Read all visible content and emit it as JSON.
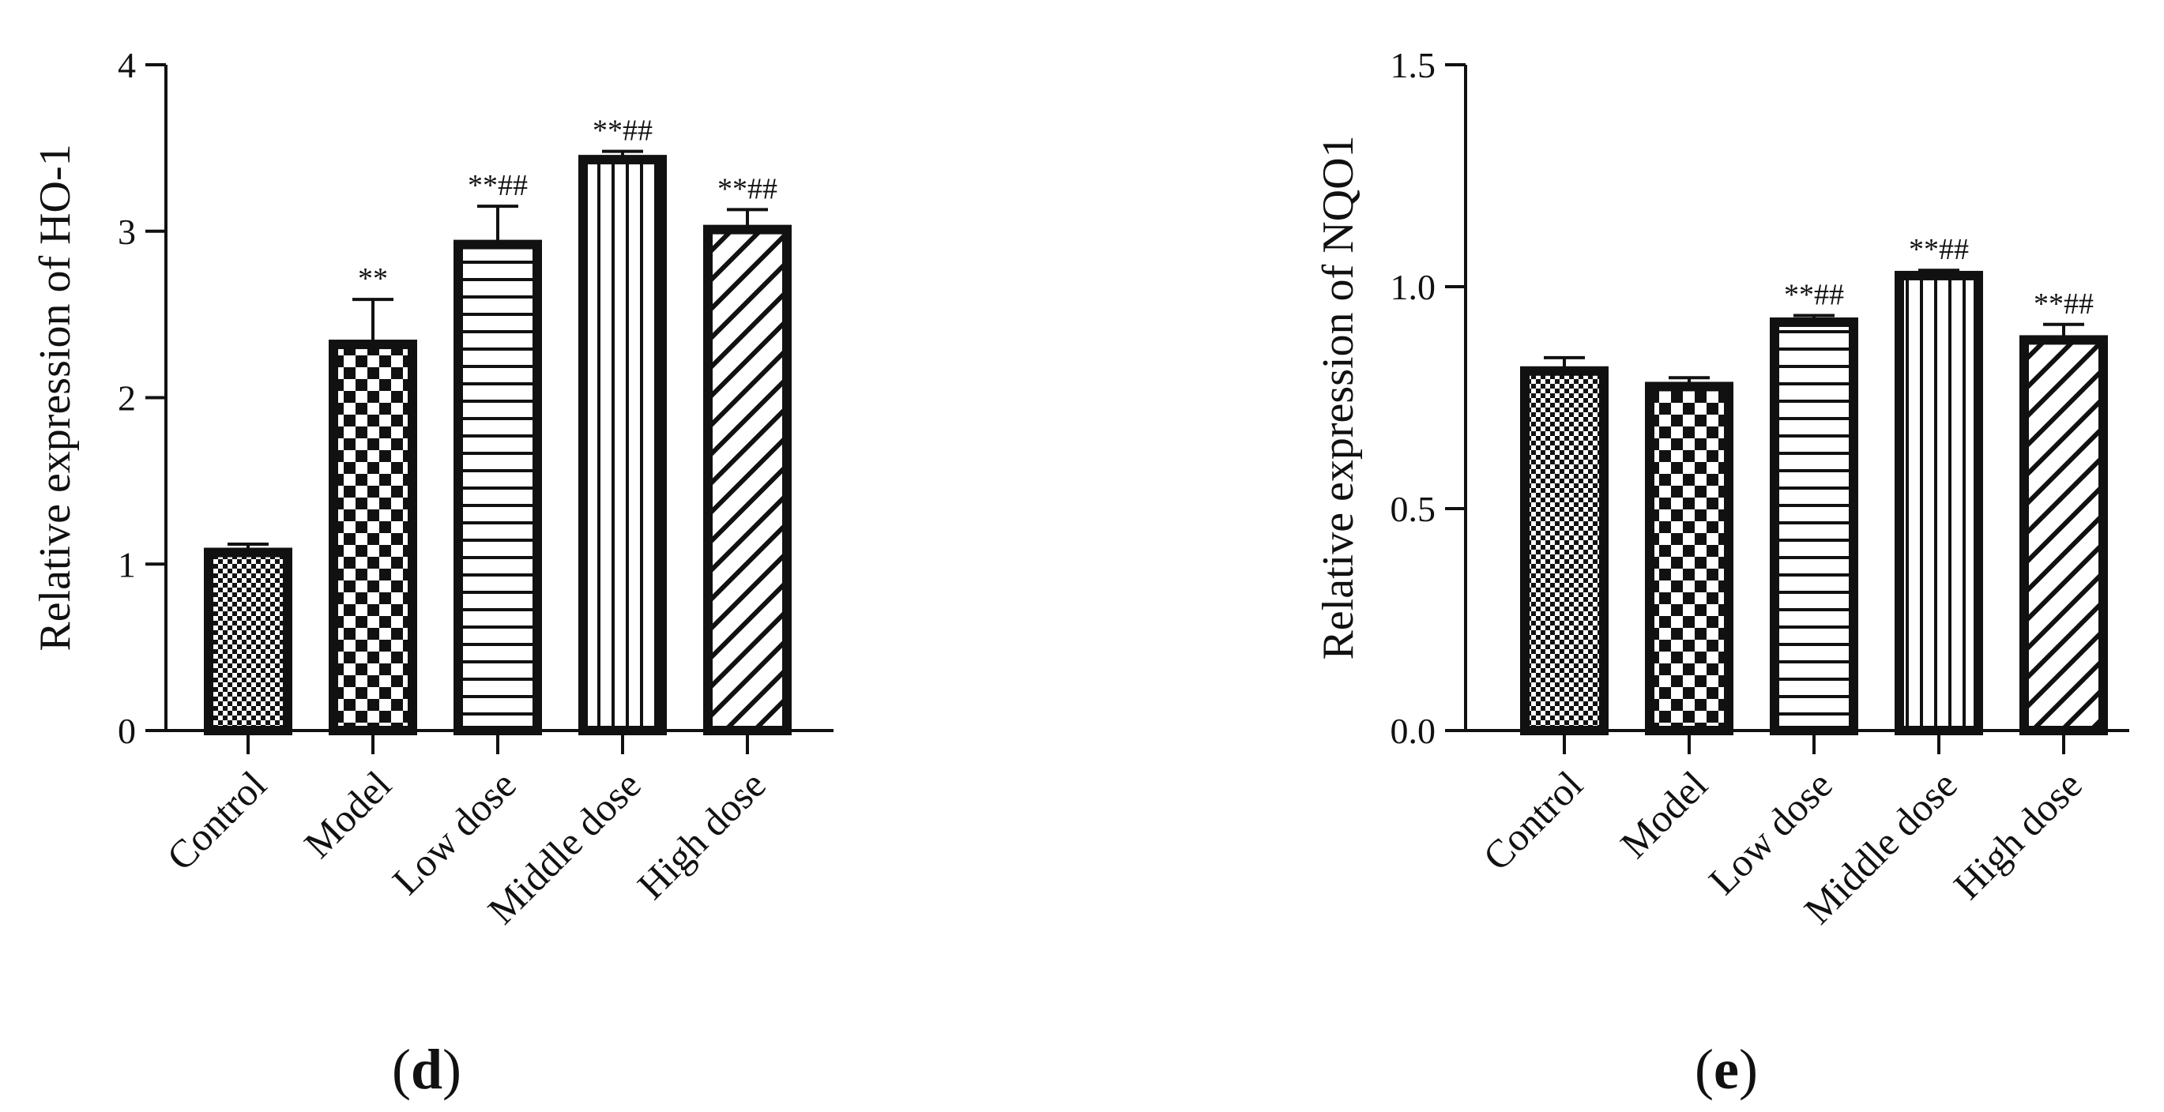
{
  "chart_data": [
    {
      "type": "bar",
      "panel_label": "d",
      "title": "",
      "xlabel": "",
      "ylabel": "Relative expression of HO-1",
      "categories": [
        "Control",
        "Model",
        "Low dose",
        "Middle dose",
        "High dose"
      ],
      "values": [
        1.07,
        2.32,
        2.92,
        3.43,
        3.01
      ],
      "errors": [
        0.05,
        0.27,
        0.23,
        0.05,
        0.12
      ],
      "significance": [
        "",
        "**",
        "**##",
        "**##",
        "**##"
      ],
      "patterns": [
        "fine-checker",
        "checker",
        "horizontal",
        "vertical",
        "diagonal"
      ],
      "ylim": [
        0,
        4
      ],
      "yticks": [
        "0",
        "1",
        "2",
        "3",
        "4"
      ],
      "ytick_values": [
        0,
        1,
        2,
        3,
        4
      ]
    },
    {
      "type": "bar",
      "panel_label": "e",
      "title": "",
      "xlabel": "",
      "ylabel": "Relative expression of NQO1",
      "categories": [
        "Control",
        "Model",
        "Low dose",
        "Middle dose",
        "High dose"
      ],
      "values": [
        0.81,
        0.775,
        0.92,
        1.025,
        0.88
      ],
      "errors": [
        0.03,
        0.02,
        0.015,
        0.012,
        0.035
      ],
      "significance": [
        "",
        "",
        "**##",
        "**##",
        "**##"
      ],
      "patterns": [
        "fine-checker",
        "checker",
        "horizontal",
        "vertical",
        "diagonal"
      ],
      "ylim": [
        0,
        1.5
      ],
      "yticks": [
        "0.0",
        "0.5",
        "1.0",
        "1.5"
      ],
      "ytick_values": [
        0,
        0.5,
        1.0,
        1.5
      ]
    }
  ],
  "colors": {
    "ink": "#111111",
    "background": "#ffffff"
  }
}
